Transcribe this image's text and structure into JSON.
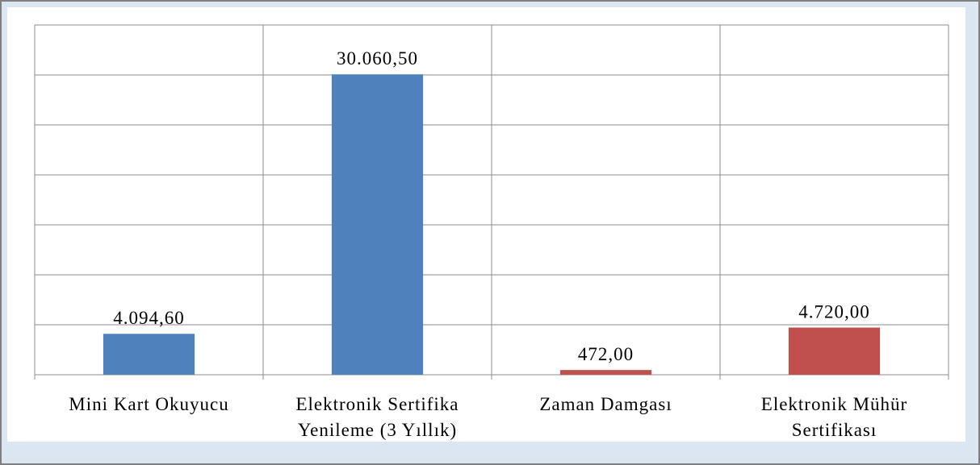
{
  "chart_data": {
    "type": "bar",
    "categories": [
      "Mini Kart Okuyucu",
      "Elektronik Sertifika Yenileme (3 Yıllık)",
      "Zaman Damgası",
      "Elektronik Mühür Sertifikası"
    ],
    "values": [
      4094.6,
      30060.5,
      472,
      4720
    ],
    "value_labels": [
      "4.094,60",
      "30.060,50",
      "472,00",
      "4.720,00"
    ],
    "colors": [
      "#4f81bd",
      "#4f81bd",
      "#c0504d",
      "#c0504d"
    ],
    "ylim": [
      0,
      35000
    ],
    "yticks": [
      0,
      5000,
      10000,
      15000,
      20000,
      25000,
      30000,
      35000
    ],
    "grid": true
  }
}
